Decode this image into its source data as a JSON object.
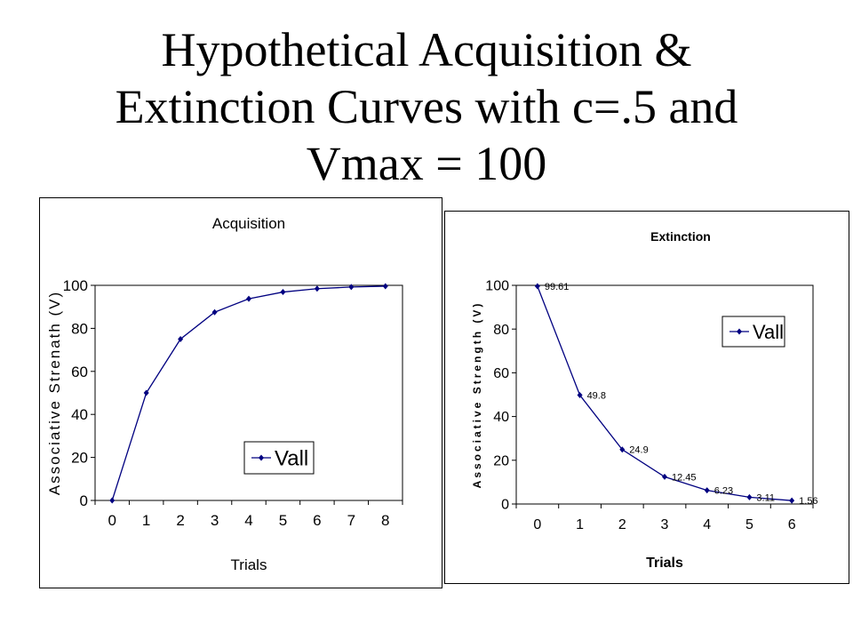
{
  "slide": {
    "title_lines": [
      "Hypothetical Acquisition &",
      "Extinction Curves with c=.5 and",
      "Vmax = 100"
    ]
  },
  "colors": {
    "series": "#000080",
    "axis": "#000000",
    "grid": "#000000"
  },
  "chart_data": [
    {
      "type": "line",
      "title": "Acquisition",
      "xlabel": "Trials",
      "ylabel": "Associative Strenath (V)",
      "x": [
        0,
        1,
        2,
        3,
        4,
        5,
        6,
        7,
        8
      ],
      "series": [
        {
          "name": "Vall",
          "values": [
            0,
            50,
            75,
            87.5,
            93.75,
            96.88,
            98.44,
            99.22,
            99.61
          ]
        }
      ],
      "ylim": [
        0,
        100
      ],
      "yticks": [
        0,
        20,
        40,
        60,
        80,
        100
      ],
      "grid": false,
      "legend": "bottom-right",
      "data_labels": false
    },
    {
      "type": "line",
      "title": "Extinction",
      "xlabel": "Trials",
      "ylabel": "Associative Strength (V)",
      "x": [
        0,
        1,
        2,
        3,
        4,
        5,
        6
      ],
      "series": [
        {
          "name": "Vall",
          "values": [
            99.61,
            49.8,
            24.9,
            12.45,
            6.23,
            3.11,
            1.56
          ]
        }
      ],
      "data_labels_text": [
        "99.61",
        "49.8",
        "24.9",
        "12.45",
        "6.23",
        "3.11",
        "1.56"
      ],
      "ylim": [
        0,
        100
      ],
      "yticks": [
        0,
        20,
        40,
        60,
        80,
        100
      ],
      "grid": false,
      "legend": "top-right",
      "data_labels": true
    }
  ]
}
